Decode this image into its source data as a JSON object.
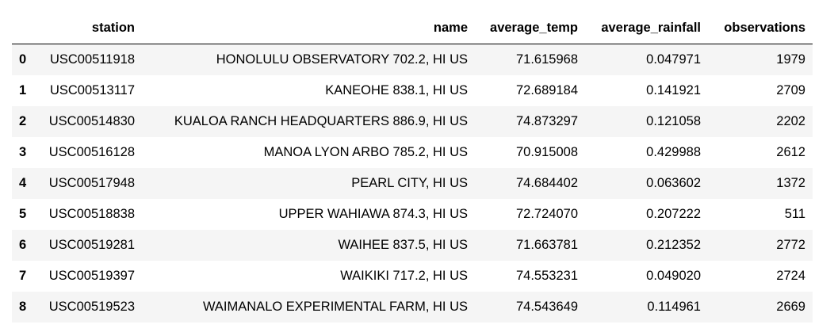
{
  "table": {
    "columns": {
      "index": "",
      "station": "station",
      "name": "name",
      "average_temp": "average_temp",
      "average_rainfall": "average_rainfall",
      "observations": "observations"
    },
    "rows": [
      {
        "index": "0",
        "station": "USC00511918",
        "name": "HONOLULU OBSERVATORY 702.2, HI US",
        "average_temp": "71.615968",
        "average_rainfall": "0.047971",
        "observations": "1979"
      },
      {
        "index": "1",
        "station": "USC00513117",
        "name": "KANEOHE 838.1, HI US",
        "average_temp": "72.689184",
        "average_rainfall": "0.141921",
        "observations": "2709"
      },
      {
        "index": "2",
        "station": "USC00514830",
        "name": "KUALOA RANCH HEADQUARTERS 886.9, HI US",
        "average_temp": "74.873297",
        "average_rainfall": "0.121058",
        "observations": "2202"
      },
      {
        "index": "3",
        "station": "USC00516128",
        "name": "MANOA LYON ARBO 785.2, HI US",
        "average_temp": "70.915008",
        "average_rainfall": "0.429988",
        "observations": "2612"
      },
      {
        "index": "4",
        "station": "USC00517948",
        "name": "PEARL CITY, HI US",
        "average_temp": "74.684402",
        "average_rainfall": "0.063602",
        "observations": "1372"
      },
      {
        "index": "5",
        "station": "USC00518838",
        "name": "UPPER WAHIAWA 874.3, HI US",
        "average_temp": "72.724070",
        "average_rainfall": "0.207222",
        "observations": "511"
      },
      {
        "index": "6",
        "station": "USC00519281",
        "name": "WAIHEE 837.5, HI US",
        "average_temp": "71.663781",
        "average_rainfall": "0.212352",
        "observations": "2772"
      },
      {
        "index": "7",
        "station": "USC00519397",
        "name": "WAIKIKI 717.2, HI US",
        "average_temp": "74.553231",
        "average_rainfall": "0.049020",
        "observations": "2724"
      },
      {
        "index": "8",
        "station": "USC00519523",
        "name": "WAIMANALO EXPERIMENTAL FARM, HI US",
        "average_temp": "74.543649",
        "average_rainfall": "0.114961",
        "observations": "2669"
      }
    ]
  }
}
